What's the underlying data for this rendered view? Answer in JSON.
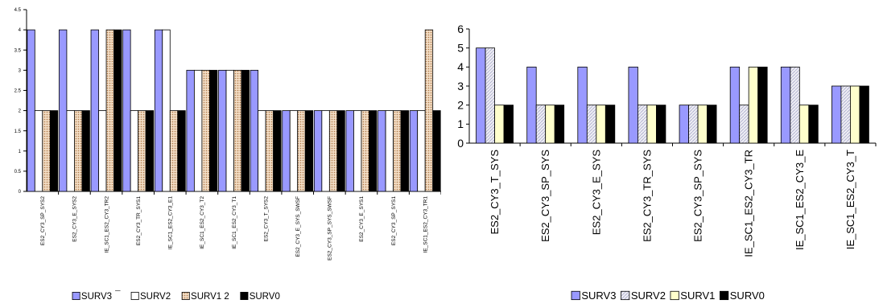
{
  "chart_data": [
    {
      "type": "bar",
      "title": "",
      "xlabel": "",
      "ylabel": "",
      "ylim": [
        0,
        4.5
      ],
      "yticks": [
        "0",
        "0.5",
        "1",
        "1.5",
        "2",
        "2.5",
        "3",
        "3.5",
        "4",
        "4.5"
      ],
      "grid": false,
      "legend_position": "bottom",
      "legend_labels": [
        "SURV3",
        "SURV2",
        "SURV1 2",
        "SURV0"
      ],
      "legend_extra": "¯",
      "categories": [
        "ES2_CY3_SP_SYS2",
        "ES2_CY3_E_SYS2",
        "IE_SC1_ES2_CY3_TR2",
        "ES2_CY3_TR_SYS1",
        "IE_SC1_ES2_CY3_E1",
        "IE_SC1_ES2_CY3_T2",
        "IE_SC1_ES2_CY3_T1",
        "ES2_CY3_T_SYS2",
        "ES2_CY3_E_SYS_SWSF",
        "ES2_CY3_SP_SYS_SWSF",
        "ES2_CY3_E_SYS1",
        "ES2_CY3_SP_SYS1",
        "IE_SC1_ES2_CY3_TR1"
      ],
      "series": [
        {
          "name": "SURV3",
          "color": "#9999ff",
          "pattern": "solid",
          "values": [
            4,
            4,
            4,
            4,
            4,
            3,
            3,
            3,
            2,
            2,
            2,
            2,
            2
          ]
        },
        {
          "name": "SURV2",
          "color": "#ffffff",
          "pattern": "solid",
          "values": [
            2,
            2,
            2,
            2,
            4,
            3,
            3,
            2,
            2,
            2,
            2,
            2,
            2
          ]
        },
        {
          "name": "SURV1 2",
          "color": "#e8c9a8",
          "pattern": "dots",
          "values": [
            2,
            2,
            4,
            2,
            2,
            3,
            3,
            2,
            2,
            2,
            2,
            2,
            4
          ]
        },
        {
          "name": "SURV0",
          "color": "#000000",
          "pattern": "solid",
          "values": [
            2,
            2,
            4,
            2,
            2,
            3,
            3,
            2,
            2,
            2,
            2,
            2,
            2
          ]
        }
      ]
    },
    {
      "type": "bar",
      "title": "",
      "xlabel": "",
      "ylabel": "",
      "ylim": [
        0,
        6
      ],
      "yticks": [
        "0",
        "1",
        "2",
        "3",
        "4",
        "5",
        "6"
      ],
      "grid": false,
      "legend_position": "bottom",
      "legend_labels": [
        "SURV3",
        "SURV2",
        "SURV1",
        "SURV0"
      ],
      "categories": [
        "ES2_CY3_T_SYS",
        "ES2_CY3_SP_SYS",
        "ES2_CY3_E_SYS",
        "ES2_CY3_TR_SYS",
        "ES2_CY3_SP_SYS",
        "IE_SC1_ES2_CY3_TR",
        "IE_SC1_ES2_CY3_E",
        "IE_SC1_ES2_CY3_T"
      ],
      "series": [
        {
          "name": "SURV3",
          "color": "#9999ff",
          "pattern": "solid",
          "values": [
            5,
            4,
            4,
            4,
            2,
            4,
            4,
            3
          ]
        },
        {
          "name": "SURV2",
          "color": "#e6e6f0",
          "pattern": "hatch",
          "values": [
            5,
            2,
            2,
            2,
            2,
            2,
            4,
            3
          ]
        },
        {
          "name": "SURV1",
          "color": "#ffffcc",
          "pattern": "solid",
          "values": [
            2,
            2,
            2,
            2,
            2,
            4,
            2,
            3
          ]
        },
        {
          "name": "SURV0",
          "color": "#000000",
          "pattern": "solid",
          "values": [
            2,
            2,
            2,
            2,
            2,
            4,
            2,
            3
          ]
        }
      ]
    }
  ]
}
